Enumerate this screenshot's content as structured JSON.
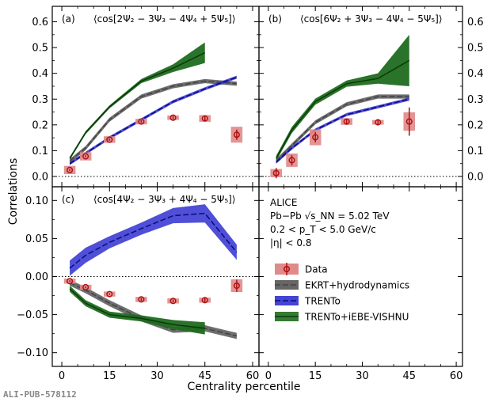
{
  "chart_data": {
    "type": "multi-panel-line-scatter",
    "xlabel": "Centrality percentile",
    "ylabel": "Correlations",
    "xlim": [
      -3,
      62
    ],
    "xticks": [
      0,
      15,
      30,
      45,
      60
    ],
    "xtick_labels": [
      "0",
      "15",
      "30",
      "45",
      "60"
    ],
    "panels": [
      {
        "id": "a",
        "tag": "(a)",
        "title": "⟨cos[2Ψ₂ − 3Ψ₃ − 4Ψ₄ + 5Ψ₅]⟩",
        "ylim": [
          -0.04,
          0.66
        ],
        "yticks": [
          "0.0",
          "0.1",
          "0.2",
          "0.3",
          "0.4",
          "0.5",
          "0.6"
        ],
        "yvals": [
          0,
          0.1,
          0.2,
          0.3,
          0.4,
          0.5,
          0.6
        ],
        "data": {
          "x": [
            2.5,
            7.5,
            15,
            25,
            35,
            45,
            55
          ],
          "y": [
            0.025,
            0.078,
            0.143,
            0.213,
            0.228,
            0.225,
            0.162
          ],
          "sys": [
            0.015,
            0.015,
            0.012,
            0.01,
            0.008,
            0.012,
            0.03
          ],
          "stat": [
            0.004,
            0.004,
            0.004,
            0.005,
            0.006,
            0.01,
            0.02
          ]
        },
        "ekrt": {
          "x": [
            2.5,
            7.5,
            15,
            25,
            35,
            45,
            55
          ],
          "y": [
            0.06,
            0.11,
            0.22,
            0.31,
            0.35,
            0.37,
            0.36
          ],
          "err": [
            0.008,
            0.008,
            0.008,
            0.008,
            0.008,
            0.008,
            0.008
          ]
        },
        "trento": {
          "x": [
            2.5,
            7.5,
            15,
            25,
            35,
            45,
            55
          ],
          "y": [
            0.05,
            0.09,
            0.15,
            0.22,
            0.29,
            0.34,
            0.385
          ],
          "err": [
            0.006,
            0.006,
            0.006,
            0.006,
            0.006,
            0.006,
            0.006
          ]
        },
        "vishnu": {
          "x": [
            2.5,
            7.5,
            15,
            25,
            35,
            45
          ],
          "y": [
            0.07,
            0.17,
            0.27,
            0.37,
            0.42,
            0.48
          ],
          "err": [
            0.006,
            0.006,
            0.006,
            0.008,
            0.015,
            0.04
          ]
        }
      },
      {
        "id": "b",
        "tag": "(b)",
        "title": "⟨cos[6Ψ₂ + 3Ψ₃ − 4Ψ₄ − 5Ψ₅]⟩",
        "ylim": [
          -0.04,
          0.66
        ],
        "yticks": [
          "0.0",
          "0.1",
          "0.2",
          "0.3",
          "0.4",
          "0.5",
          "0.6"
        ],
        "yvals": [
          0,
          0.1,
          0.2,
          0.3,
          0.4,
          0.5,
          0.6
        ],
        "data": {
          "x": [
            2.5,
            7.5,
            15,
            25,
            35,
            45
          ],
          "y": [
            0.013,
            0.063,
            0.152,
            0.213,
            0.21,
            0.213
          ],
          "sys": [
            0.015,
            0.025,
            0.03,
            0.012,
            0.008,
            0.035
          ],
          "stat": [
            0.02,
            0.02,
            0.02,
            0.008,
            0.008,
            0.055
          ]
        },
        "ekrt": {
          "x": [
            2.5,
            7.5,
            15,
            25,
            35,
            45
          ],
          "y": [
            0.06,
            0.12,
            0.21,
            0.28,
            0.31,
            0.31
          ],
          "err": [
            0.008,
            0.008,
            0.008,
            0.008,
            0.008,
            0.008
          ]
        },
        "trento": {
          "x": [
            2.5,
            7.5,
            15,
            25,
            35,
            45
          ],
          "y": [
            0.055,
            0.11,
            0.18,
            0.24,
            0.27,
            0.3
          ],
          "err": [
            0.006,
            0.006,
            0.006,
            0.006,
            0.006,
            0.006
          ]
        },
        "vishnu": {
          "x": [
            2.5,
            7.5,
            15,
            25,
            35,
            45
          ],
          "y": [
            0.07,
            0.18,
            0.29,
            0.36,
            0.38,
            0.45
          ],
          "err": [
            0.01,
            0.012,
            0.012,
            0.012,
            0.02,
            0.1
          ]
        }
      },
      {
        "id": "c",
        "tag": "(c)",
        "title": "⟨cos[4Ψ₂ − 3Ψ₃ + 4Ψ₄ − 5Ψ₅]⟩",
        "ylim": [
          -0.118,
          0.118
        ],
        "yticks": [
          "−0.10",
          "−0.05",
          "0.00",
          "0.05",
          "0.10"
        ],
        "yvals": [
          -0.1,
          -0.05,
          0,
          0.05,
          0.1
        ],
        "data": {
          "x": [
            2.5,
            7.5,
            15,
            25,
            35,
            45,
            55
          ],
          "y": [
            -0.006,
            -0.014,
            -0.023,
            -0.03,
            -0.032,
            -0.031,
            -0.012
          ],
          "sys": [
            0.003,
            0.003,
            0.003,
            0.003,
            0.003,
            0.003,
            0.008
          ],
          "stat": [
            0.001,
            0.001,
            0.001,
            0.002,
            0.002,
            0.003,
            0.008
          ]
        },
        "ekrt": {
          "x": [
            2.5,
            7.5,
            15,
            25,
            35,
            45,
            55
          ],
          "y": [
            -0.008,
            -0.018,
            -0.035,
            -0.055,
            -0.07,
            -0.068,
            -0.078
          ],
          "err": [
            0.004,
            0.004,
            0.004,
            0.004,
            0.004,
            0.004,
            0.004
          ]
        },
        "trento": {
          "x": [
            2.5,
            7.5,
            15,
            25,
            35,
            45,
            55
          ],
          "y": [
            0.011,
            0.028,
            0.045,
            0.063,
            0.08,
            0.083,
            0.032
          ],
          "err": [
            0.01,
            0.01,
            0.008,
            0.008,
            0.01,
            0.012,
            0.01
          ]
        },
        "vishnu": {
          "x": [
            2.5,
            7.5,
            15,
            25,
            35,
            45
          ],
          "y": [
            -0.016,
            -0.035,
            -0.05,
            -0.055,
            -0.063,
            -0.068
          ],
          "err": [
            0.004,
            0.004,
            0.004,
            0.004,
            0.006,
            0.008
          ]
        }
      }
    ],
    "info": {
      "experiment": "ALICE",
      "system": "Pb−Pb √s_NN = 5.02 TeV",
      "pt_range": "0.2 < p_T < 5.0 GeV/c",
      "eta_range": "|η| < 0.8"
    },
    "legend": [
      {
        "key": "data",
        "label": "Data"
      },
      {
        "key": "ekrt",
        "label": "EKRT+hydrodynamics"
      },
      {
        "key": "trento",
        "label": "TRENTo"
      },
      {
        "key": "vishnu",
        "label": "TRENTo+iEBE-VISHNU"
      }
    ],
    "colors": {
      "data_marker": "#b01010",
      "data_box": "#e08a8a",
      "ekrt_band": "#555555",
      "ekrt_line": "#444444",
      "trento_band": "#3030d0",
      "trento_line": "#0a0a80",
      "vishnu_band": "#1f6b1f",
      "vishnu_line": "#0a3a0a"
    }
  },
  "logo": {
    "text": "ALI-PUB-578112"
  }
}
